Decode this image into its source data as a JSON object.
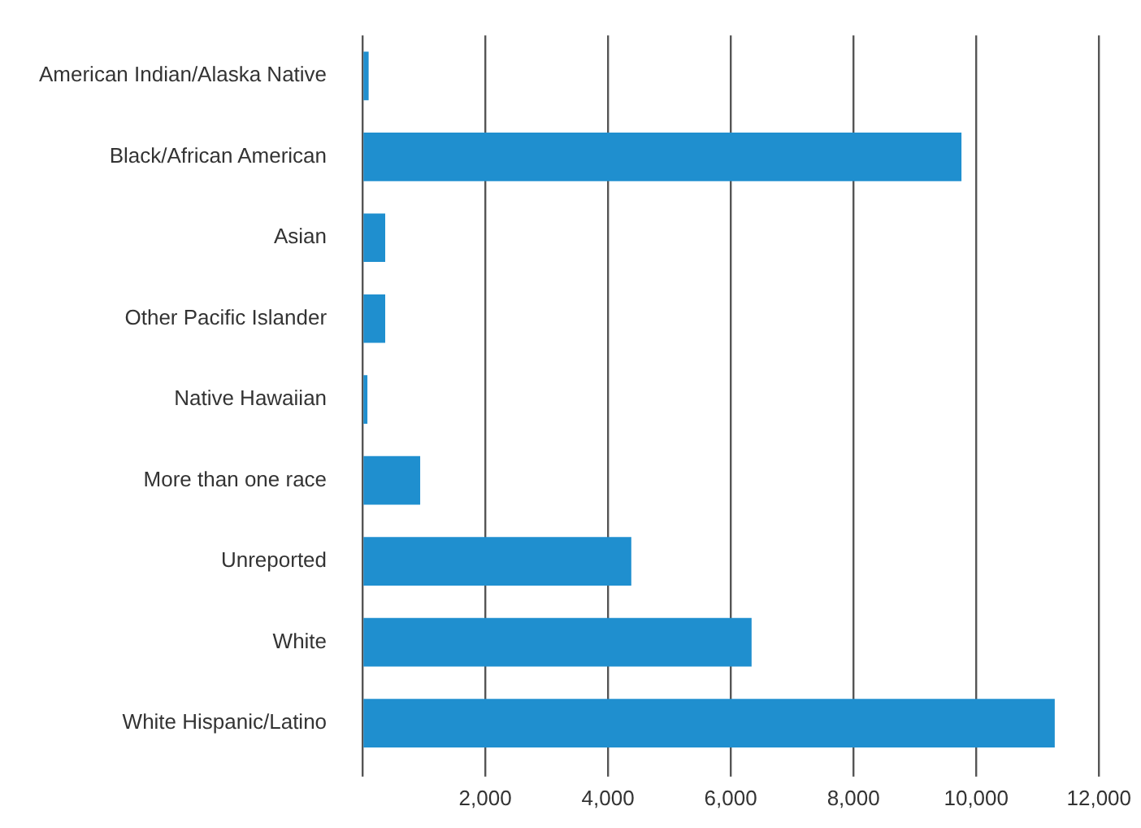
{
  "chart_data": {
    "type": "bar",
    "orientation": "horizontal",
    "categories": [
      "American Indian/Alaska Native",
      "Black/African American",
      "Asian",
      "Other Pacific Islander",
      "Native Hawaiian",
      "More than one race",
      "Unreported",
      "White",
      "White Hispanic/Latino"
    ],
    "values": [
      100,
      9760,
      370,
      370,
      80,
      940,
      4380,
      6340,
      11280
    ],
    "color": "#1f8fcf",
    "xlim": [
      0,
      12000
    ],
    "xticks": [
      {
        "value": 0,
        "label": null
      },
      {
        "value": 2000,
        "label": "2,000"
      },
      {
        "value": 4000,
        "label": "4,000"
      },
      {
        "value": 6000,
        "label": "6,000"
      },
      {
        "value": 8000,
        "label": "8,000"
      },
      {
        "value": 10000,
        "label": "10,000"
      },
      {
        "value": 12000,
        "label": "12,000"
      }
    ],
    "grid": "x",
    "legend": false
  }
}
